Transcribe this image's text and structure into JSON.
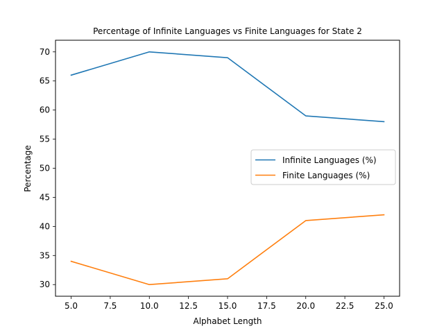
{
  "chart_data": {
    "type": "line",
    "title": "Percentage of Infinite Languages vs Finite Languages for State 2",
    "xlabel": "Alphabet Length",
    "ylabel": "Percentage",
    "x": [
      5,
      10,
      15,
      20,
      25
    ],
    "xlim": [
      4.0,
      26.0
    ],
    "ylim": [
      28.0,
      72.0
    ],
    "xticks": [
      5.0,
      7.5,
      10.0,
      12.5,
      15.0,
      17.5,
      20.0,
      22.5,
      25.0
    ],
    "xtick_labels": [
      "5.0",
      "7.5",
      "10.0",
      "12.5",
      "15.0",
      "17.5",
      "20.0",
      "22.5",
      "25.0"
    ],
    "yticks": [
      30,
      35,
      40,
      45,
      50,
      55,
      60,
      65,
      70
    ],
    "ytick_labels": [
      "30",
      "35",
      "40",
      "45",
      "50",
      "55",
      "60",
      "65",
      "70"
    ],
    "grid": false,
    "legend_position": "center-right",
    "series": [
      {
        "name": "Infinite Languages (%)",
        "color": "#1f77b4",
        "values": [
          66,
          70,
          69,
          59,
          58
        ]
      },
      {
        "name": "Finite Languages (%)",
        "color": "#ff7f0e",
        "values": [
          34,
          30,
          31,
          41,
          42
        ]
      }
    ]
  }
}
